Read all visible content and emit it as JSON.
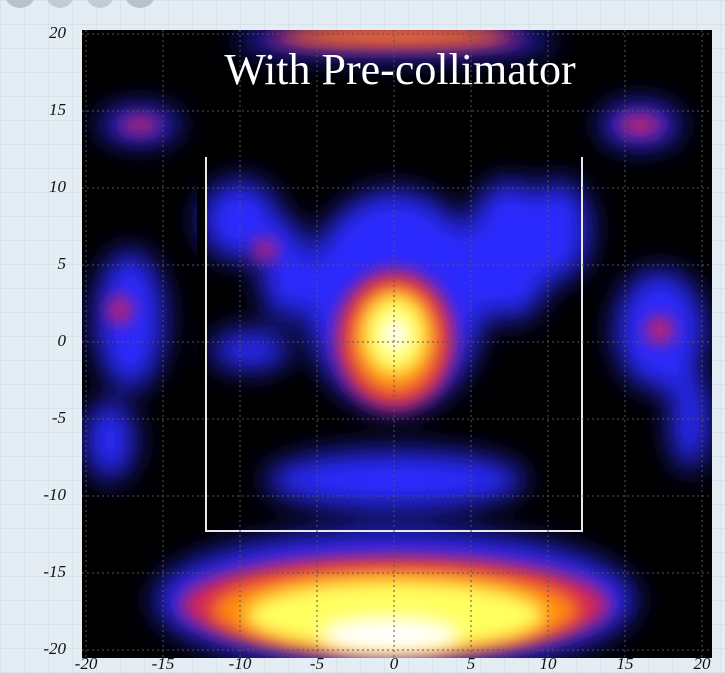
{
  "chart_data": {
    "type": "heatmap",
    "annotation": "With Pre-collimator",
    "xlim": [
      -20,
      20
    ],
    "ylim": [
      -20,
      20
    ],
    "xticks": [
      -20,
      -15,
      -10,
      -5,
      0,
      5,
      10,
      15,
      20
    ],
    "yticks": [
      -20,
      -15,
      -10,
      -5,
      0,
      5,
      10,
      15,
      20
    ],
    "grid": true
  }
}
